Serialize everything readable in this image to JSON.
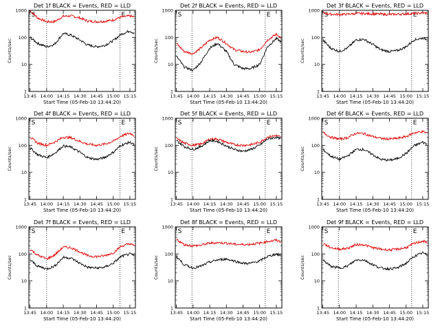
{
  "figure": {
    "x_axis_ticks": [
      "13:45",
      "14:00",
      "14:15",
      "14:30",
      "14:45",
      "15:00",
      "15:15"
    ],
    "y_axis_ticks": [
      "1",
      "10",
      "100",
      "1000"
    ],
    "ylabel": "Counts/sec",
    "xlabel": "Start Time (05-Feb-10 13:44:20)",
    "colors": {
      "events": "#000000",
      "lld": "#e00000"
    }
  },
  "chart_data": [
    {
      "type": "line",
      "title": "Det 1f BLACK = Events, RED = LLD",
      "xlabel": "Start Time (05-Feb-10 13:44:20)",
      "ylabel": "Counts/sec",
      "x_range": [
        "13:45",
        "15:20"
      ],
      "y_scale": "log",
      "ylim": [
        1,
        1000
      ],
      "vlines": [
        "14:00",
        "15:06"
      ],
      "markers": [
        {
          "label": "S",
          "x": "13:45"
        },
        {
          "label": "E",
          "x": "15:06"
        }
      ],
      "x": [
        "13:45",
        "13:52",
        "14:00",
        "14:07",
        "14:15",
        "14:22",
        "14:30",
        "14:37",
        "14:45",
        "14:52",
        "15:00",
        "15:07",
        "15:15",
        "15:19"
      ],
      "series": [
        {
          "name": "LLD",
          "color": "red",
          "values": [
            1000,
            520,
            380,
            380,
            600,
            620,
            520,
            400,
            380,
            390,
            440,
            560,
            620,
            560
          ]
        },
        {
          "name": "Events",
          "color": "black",
          "values": [
            100,
            60,
            45,
            55,
            140,
            120,
            80,
            52,
            45,
            50,
            75,
            130,
            175,
            140
          ]
        }
      ]
    },
    {
      "type": "line",
      "title": "Det 2f BLACK = Events, RED = LLD",
      "xlabel": "Start Time (05-Feb-10 13:44:20)",
      "ylabel": "Counts/sec",
      "x_range": [
        "13:45",
        "15:20"
      ],
      "y_scale": "log",
      "ylim": [
        1,
        1000
      ],
      "vlines": [
        "13:59",
        "15:05"
      ],
      "markers": [
        {
          "label": "S",
          "x": "13:45"
        },
        {
          "label": "E",
          "x": "15:05"
        }
      ],
      "x": [
        "13:45",
        "13:52",
        "14:00",
        "14:07",
        "14:15",
        "14:22",
        "14:30",
        "14:37",
        "14:45",
        "14:52",
        "15:00",
        "15:07",
        "15:15",
        "15:19"
      ],
      "series": [
        {
          "name": "LLD",
          "color": "red",
          "values": [
            60,
            30,
            25,
            40,
            80,
            100,
            60,
            35,
            30,
            28,
            35,
            80,
            130,
            100
          ]
        },
        {
          "name": "Events",
          "color": "black",
          "values": [
            20,
            8,
            6,
            12,
            40,
            60,
            30,
            10,
            7,
            7,
            10,
            45,
            90,
            70
          ]
        }
      ]
    },
    {
      "type": "line",
      "title": "Det 3f BLACK = Events, RED = LLD",
      "xlabel": "Start Time (05-Feb-10 13:44:20)",
      "ylabel": "Counts/sec",
      "x_range": [
        "13:45",
        "15:20"
      ],
      "y_scale": "log",
      "ylim": [
        1,
        1000
      ],
      "vlines": [
        "14:00",
        "15:05"
      ],
      "markers": [
        {
          "label": "S",
          "x": "13:45"
        },
        {
          "label": "E",
          "x": "15:05"
        }
      ],
      "x": [
        "13:45",
        "13:52",
        "14:00",
        "14:07",
        "14:15",
        "14:22",
        "14:30",
        "14:37",
        "14:45",
        "14:52",
        "15:00",
        "15:07",
        "15:15",
        "15:19"
      ],
      "series": [
        {
          "name": "LLD",
          "color": "red",
          "values": [
            800,
            720,
            700,
            720,
            760,
            760,
            740,
            720,
            700,
            720,
            740,
            760,
            800,
            780
          ]
        },
        {
          "name": "Events",
          "color": "black",
          "values": [
            80,
            40,
            30,
            40,
            80,
            85,
            55,
            35,
            30,
            32,
            45,
            80,
            95,
            85
          ]
        }
      ]
    },
    {
      "type": "line",
      "title": "Det 4f BLACK = Events, RED = LLD",
      "xlabel": "Start Time (05-Feb-10 13:44:20)",
      "ylabel": "Counts/sec",
      "x_range": [
        "13:45",
        "15:20"
      ],
      "y_scale": "log",
      "ylim": [
        1,
        1000
      ],
      "vlines": [
        "14:00",
        "15:06"
      ],
      "markers": [
        {
          "label": "S",
          "x": "13:45"
        },
        {
          "label": "E",
          "x": "15:06"
        }
      ],
      "x": [
        "13:45",
        "13:52",
        "14:00",
        "14:07",
        "14:15",
        "14:22",
        "14:30",
        "14:37",
        "14:45",
        "14:52",
        "15:00",
        "15:07",
        "15:15",
        "15:19"
      ],
      "series": [
        {
          "name": "LLD",
          "color": "red",
          "values": [
            200,
            120,
            100,
            130,
            200,
            190,
            140,
            110,
            100,
            110,
            140,
            220,
            280,
            230
          ]
        },
        {
          "name": "Events",
          "color": "black",
          "values": [
            80,
            45,
            35,
            50,
            95,
            85,
            55,
            35,
            30,
            35,
            55,
            100,
            130,
            105
          ]
        }
      ]
    },
    {
      "type": "line",
      "title": "Det 5f BLACK = Events, RED = LLD",
      "xlabel": "Start Time (05-Feb-10 13:44:20)",
      "ylabel": "Counts/sec",
      "x_range": [
        "13:45",
        "15:20"
      ],
      "y_scale": "log",
      "ylim": [
        1,
        1000
      ],
      "vlines": [
        "13:59",
        "15:05"
      ],
      "markers": [
        {
          "label": "S",
          "x": "13:45"
        },
        {
          "label": "E",
          "x": "15:05"
        }
      ],
      "x": [
        "13:45",
        "13:52",
        "14:00",
        "14:07",
        "14:15",
        "14:22",
        "14:30",
        "14:37",
        "14:45",
        "14:52",
        "15:00",
        "15:07",
        "15:15",
        "15:19"
      ],
      "series": [
        {
          "name": "LLD",
          "color": "red",
          "values": [
            180,
            120,
            100,
            110,
            170,
            170,
            130,
            105,
            100,
            105,
            130,
            200,
            230,
            200
          ]
        },
        {
          "name": "Events",
          "color": "black",
          "values": [
            150,
            90,
            70,
            90,
            150,
            140,
            95,
            70,
            60,
            70,
            100,
            170,
            200,
            170
          ]
        }
      ]
    },
    {
      "type": "line",
      "title": "Det 6f BLACK = Events, RED = LLD",
      "xlabel": "Start Time (05-Feb-10 13:44:20)",
      "ylabel": "Counts/sec",
      "x_range": [
        "13:45",
        "15:20"
      ],
      "y_scale": "log",
      "ylim": [
        1,
        1000
      ],
      "vlines": [
        "14:00",
        "15:05"
      ],
      "markers": [
        {
          "label": "S",
          "x": "13:45"
        },
        {
          "label": "E",
          "x": "15:05"
        }
      ],
      "x": [
        "13:45",
        "13:52",
        "14:00",
        "14:07",
        "14:15",
        "14:22",
        "14:30",
        "14:37",
        "14:45",
        "14:52",
        "15:00",
        "15:07",
        "15:15",
        "15:19"
      ],
      "series": [
        {
          "name": "LLD",
          "color": "red",
          "values": [
            300,
            200,
            170,
            190,
            280,
            270,
            210,
            180,
            170,
            180,
            210,
            290,
            320,
            280
          ]
        },
        {
          "name": "Events",
          "color": "black",
          "values": [
            70,
            40,
            30,
            40,
            70,
            70,
            45,
            30,
            28,
            32,
            50,
            95,
            130,
            110
          ]
        }
      ]
    },
    {
      "type": "line",
      "title": "Det 7f BLACK = Events, RED = LLD",
      "xlabel": "Start Time (05-Feb-10 13:44:20)",
      "ylabel": "Counts/sec",
      "x_range": [
        "13:45",
        "15:20"
      ],
      "y_scale": "log",
      "ylim": [
        1,
        1000
      ],
      "vlines": [
        "14:00",
        "15:06"
      ],
      "markers": [
        {
          "label": "S",
          "x": "13:45"
        },
        {
          "label": "E",
          "x": "15:06"
        }
      ],
      "x": [
        "13:45",
        "13:52",
        "14:00",
        "14:07",
        "14:15",
        "14:22",
        "14:30",
        "14:37",
        "14:45",
        "14:52",
        "15:00",
        "15:07",
        "15:15",
        "15:19"
      ],
      "series": [
        {
          "name": "LLD",
          "color": "red",
          "values": [
            150,
            90,
            65,
            90,
            180,
            170,
            120,
            85,
            80,
            85,
            110,
            190,
            240,
            200
          ]
        },
        {
          "name": "Events",
          "color": "black",
          "values": [
            60,
            35,
            28,
            35,
            75,
            70,
            45,
            32,
            30,
            32,
            45,
            80,
            100,
            85
          ]
        }
      ]
    },
    {
      "type": "line",
      "title": "Det 8f BLACK = Events, RED = LLD",
      "xlabel": "Start Time (05-Feb-10 13:44:20)",
      "ylabel": "Counts/sec",
      "x_range": [
        "13:45",
        "15:20"
      ],
      "y_scale": "log",
      "ylim": [
        1,
        1000
      ],
      "vlines": [
        "13:59",
        "15:05"
      ],
      "markers": [
        {
          "label": "S",
          "x": "13:45"
        },
        {
          "label": "E",
          "x": "15:05"
        }
      ],
      "x": [
        "13:45",
        "13:52",
        "14:00",
        "14:07",
        "14:15",
        "14:22",
        "14:30",
        "14:37",
        "14:45",
        "14:52",
        "15:00",
        "15:07",
        "15:15",
        "15:19"
      ],
      "series": [
        {
          "name": "LLD",
          "color": "red",
          "values": [
            350,
            220,
            200,
            210,
            250,
            260,
            250,
            230,
            220,
            230,
            250,
            290,
            320,
            280
          ]
        },
        {
          "name": "Events",
          "color": "black",
          "values": [
            80,
            40,
            30,
            35,
            50,
            60,
            65,
            55,
            45,
            45,
            55,
            80,
            100,
            85
          ]
        }
      ]
    },
    {
      "type": "line",
      "title": "Det 9f BLACK = Events, RED = LLD",
      "xlabel": "Start Time (05-Feb-10 13:44:20)",
      "ylabel": "Counts/sec",
      "x_range": [
        "13:45",
        "15:20"
      ],
      "y_scale": "log",
      "ylim": [
        1,
        1000
      ],
      "vlines": [
        "13:59",
        "15:05"
      ],
      "markers": [
        {
          "label": "S",
          "x": "13:45"
        },
        {
          "label": "E",
          "x": "15:05"
        }
      ],
      "x": [
        "13:45",
        "13:52",
        "14:00",
        "14:07",
        "14:15",
        "14:22",
        "14:30",
        "14:37",
        "14:45",
        "14:52",
        "15:00",
        "15:07",
        "15:15",
        "15:19"
      ],
      "series": [
        {
          "name": "LLD",
          "color": "red",
          "values": [
            250,
            170,
            150,
            160,
            220,
            220,
            170,
            150,
            140,
            150,
            170,
            240,
            300,
            260
          ]
        },
        {
          "name": "Events",
          "color": "black",
          "values": [
            60,
            35,
            30,
            35,
            60,
            60,
            40,
            30,
            28,
            30,
            45,
            80,
            110,
            90
          ]
        }
      ]
    }
  ]
}
